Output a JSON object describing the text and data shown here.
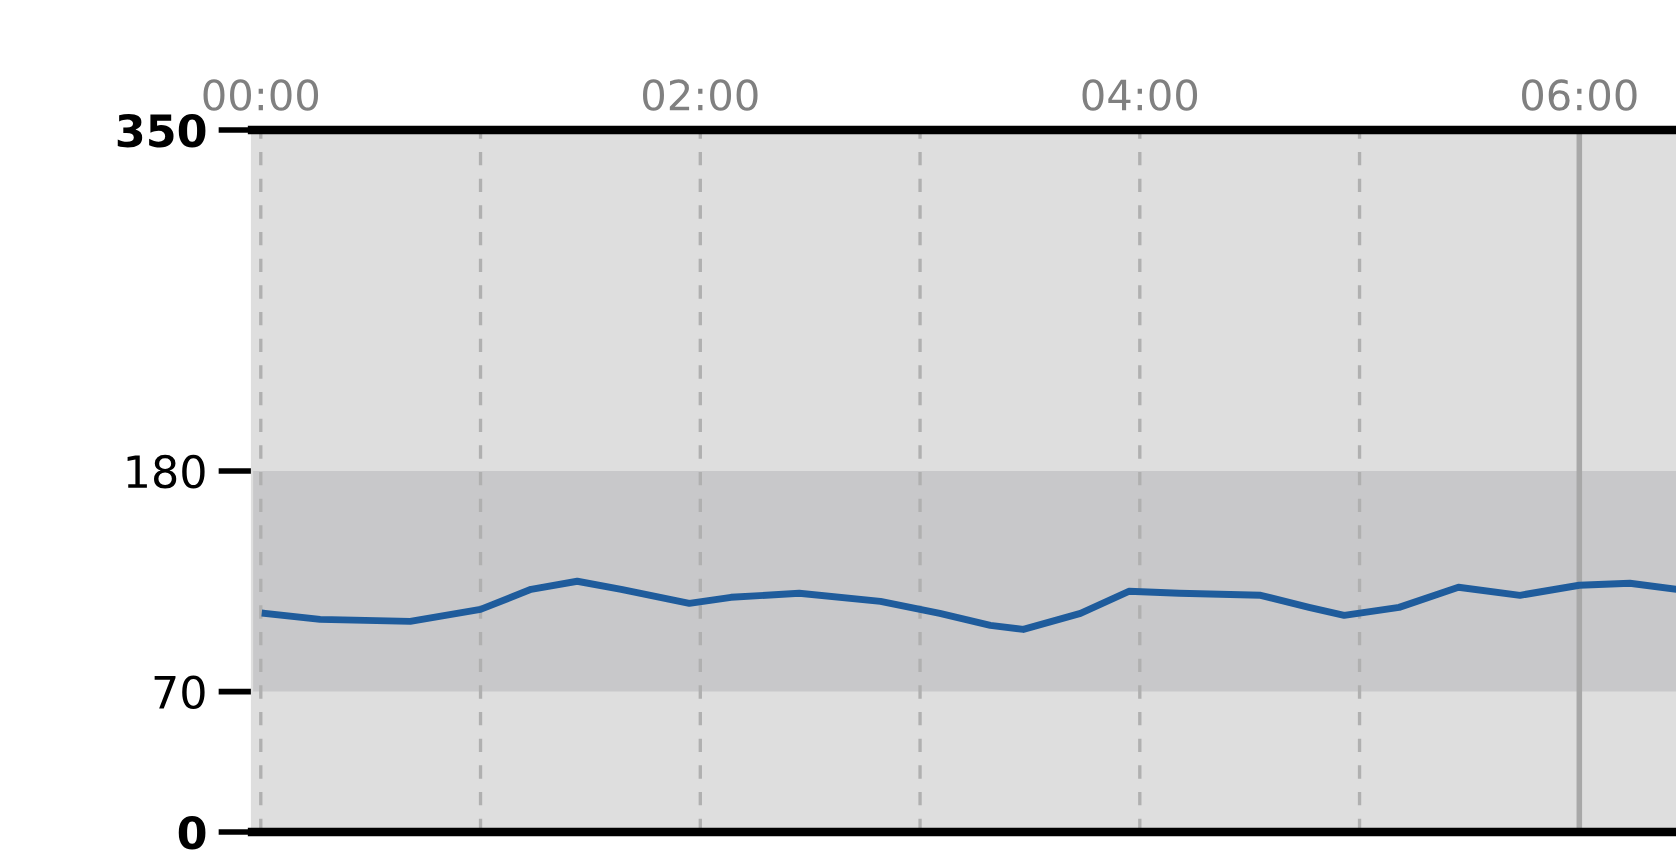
{
  "chart_data": {
    "type": "line",
    "x": [
      0.02,
      0.27,
      0.68,
      1.0,
      1.23,
      1.44,
      1.64,
      1.95,
      2.14,
      2.45,
      2.82,
      3.09,
      3.32,
      3.47,
      3.73,
      3.95,
      4.18,
      4.55,
      4.77,
      4.93,
      5.18,
      5.45,
      5.73,
      6.0,
      6.23,
      6.44
    ],
    "series": [
      {
        "color": "#1f5c9c",
        "values": [
          109,
          106,
          105,
          111,
          121,
          125,
          121,
          114,
          117,
          119,
          115,
          109,
          103,
          101,
          109,
          120,
          119,
          118,
          112,
          108,
          112,
          122,
          118,
          123,
          124,
          121
        ]
      }
    ],
    "xlim": [
      -0.04,
      6.44
    ],
    "xticks": [
      {
        "value": 0,
        "label": "00:00"
      },
      {
        "value": 1,
        "label": null
      },
      {
        "value": 2,
        "label": "02:00"
      },
      {
        "value": 3,
        "label": null
      },
      {
        "value": 4,
        "label": "04:00"
      },
      {
        "value": 5,
        "label": null
      },
      {
        "value": 6,
        "label": "06:00"
      }
    ],
    "ylim": [
      0,
      350
    ],
    "yticks": [
      0,
      70,
      180,
      350
    ],
    "bands": [
      {
        "axis": "y",
        "from": 70,
        "to": 180,
        "color": "#c8c8ca"
      }
    ],
    "ref_lines": [
      {
        "axis": "x",
        "value": 6,
        "color": "#a8a8a8",
        "line_style": "solid"
      }
    ],
    "grid": "x",
    "marker": "none",
    "line_style": "solid"
  }
}
